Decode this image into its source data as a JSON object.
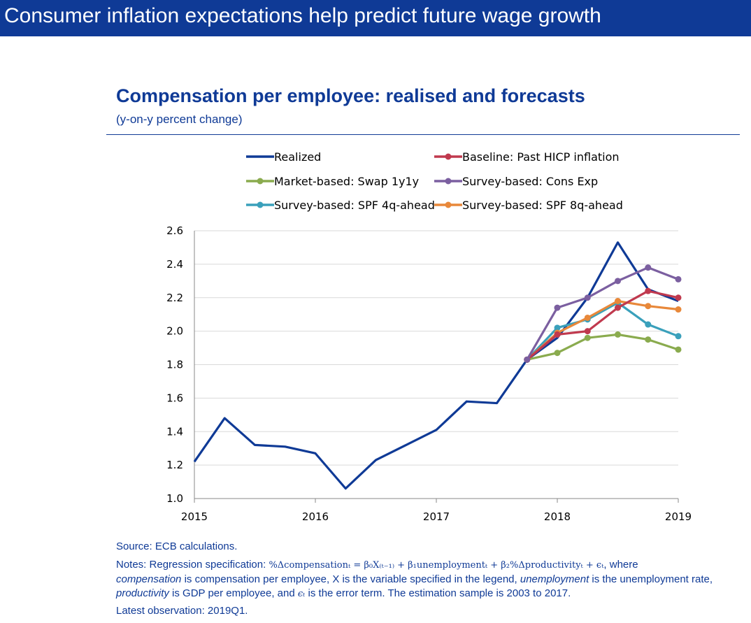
{
  "header": {
    "title": "Consumer inflation expectations help predict future wage growth"
  },
  "chart_data": {
    "type": "line",
    "title": "Compensation per employee: realised and forecasts",
    "subtitle": "(y-on-y percent change)",
    "xlabel": "",
    "ylabel": "",
    "x_ticks": [
      "2015",
      "2016",
      "2017",
      "2018",
      "2019"
    ],
    "xlim": [
      2015.0,
      2019.0
    ],
    "ylim": [
      1.0,
      2.6
    ],
    "y_ticks": [
      "1.0",
      "1.2",
      "1.4",
      "1.6",
      "1.8",
      "2.0",
      "2.2",
      "2.4",
      "2.6"
    ],
    "grid": "horizontal",
    "legend_position": "top",
    "series": [
      {
        "name": "Realized",
        "color": "#0f3a96",
        "markers": false,
        "x": [
          2015.0,
          2015.25,
          2015.5,
          2015.75,
          2016.0,
          2016.25,
          2016.5,
          2016.75,
          2017.0,
          2017.25,
          2017.5,
          2017.75,
          2018.0,
          2018.25,
          2018.5,
          2018.75,
          2019.0
        ],
        "y": [
          1.22,
          1.48,
          1.32,
          1.31,
          1.27,
          1.06,
          1.23,
          1.32,
          1.41,
          1.58,
          1.57,
          1.83,
          1.96,
          2.2,
          2.53,
          2.25,
          2.18
        ]
      },
      {
        "name": "Baseline: Past HICP inflation",
        "color": "#c0394e",
        "markers": true,
        "x": [
          2017.75,
          2018.0,
          2018.25,
          2018.5,
          2018.75,
          2019.0
        ],
        "y": [
          1.83,
          1.98,
          2.0,
          2.14,
          2.24,
          2.2
        ]
      },
      {
        "name": "Market-based: Swap 1y1y",
        "color": "#8aab4e",
        "markers": true,
        "x": [
          2017.75,
          2018.0,
          2018.25,
          2018.5,
          2018.75,
          2019.0
        ],
        "y": [
          1.83,
          1.87,
          1.96,
          1.98,
          1.95,
          1.89
        ]
      },
      {
        "name": "Survey-based: Cons Exp",
        "color": "#7b5fa0",
        "markers": true,
        "x": [
          2017.75,
          2018.0,
          2018.25,
          2018.5,
          2018.75,
          2019.0
        ],
        "y": [
          1.83,
          2.14,
          2.2,
          2.3,
          2.38,
          2.31
        ]
      },
      {
        "name": "Survey-based: SPF 4q-ahead",
        "color": "#3aa0bb",
        "markers": true,
        "x": [
          2017.75,
          2018.0,
          2018.25,
          2018.5,
          2018.75,
          2019.0
        ],
        "y": [
          1.83,
          2.02,
          2.07,
          2.17,
          2.04,
          1.97
        ]
      },
      {
        "name": "Survey-based: SPF 8q-ahead",
        "color": "#e8883a",
        "markers": true,
        "x": [
          2017.75,
          2018.0,
          2018.25,
          2018.5,
          2018.75,
          2019.0
        ],
        "y": [
          1.83,
          1.99,
          2.08,
          2.18,
          2.15,
          2.13
        ]
      }
    ]
  },
  "notes": {
    "source": "Source: ECB calculations.",
    "notes_prefix": "Notes: Regression specification: ",
    "formula_text": "%Δcompensationₜ = β₀X₍ₜ₋₁₎ + β₁unemploymentₜ + β₂%Δproductivityₜ + ϵₜ",
    "notes_where": ", where",
    "t_compensation": "compensation",
    "t_is_comp": " is compensation per employee,  X is the variable specified in the legend, ",
    "t_unemployment": "unemployment",
    "t_is_unemp": " is the unemployment rate, ",
    "t_productivity": "productivity",
    "t_is_prod": " is GDP per employee, and ",
    "t_epsilon": "ϵₜ",
    "t_is_error": " is the error term. The estimation sample is 2003 to 2017.",
    "latest": "Latest observation: 2019Q1."
  }
}
